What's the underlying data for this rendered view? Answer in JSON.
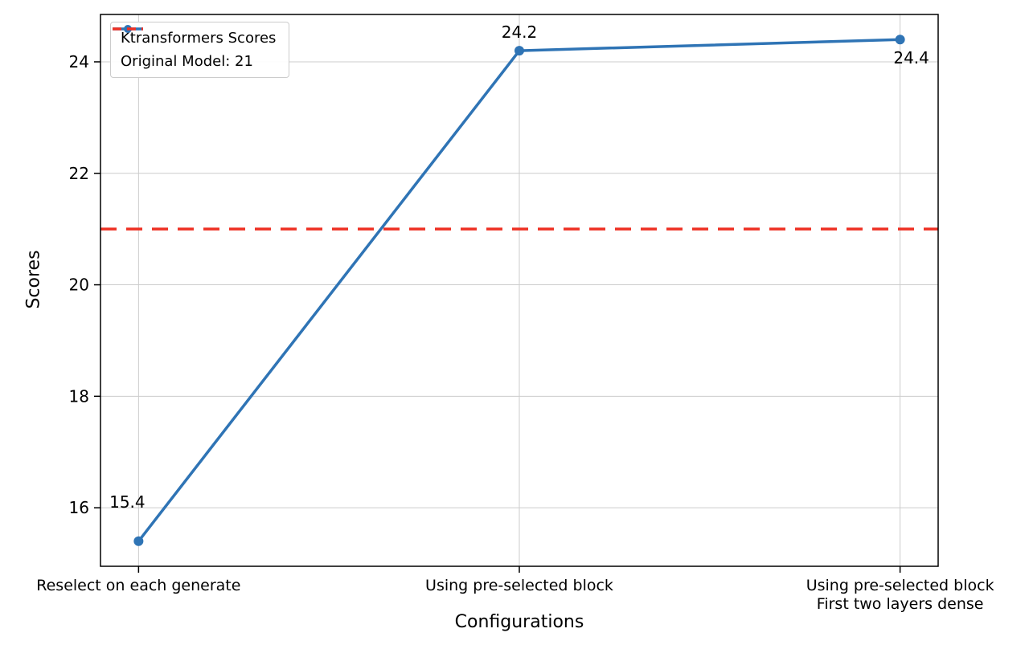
{
  "chart_data": {
    "type": "line",
    "title": "",
    "xlabel": "Configurations",
    "ylabel": "Scores",
    "categories": [
      "Reselect on each generate",
      "Using pre-selected block",
      "Using pre-selected block\nFirst two layers dense"
    ],
    "series": [
      {
        "name": "Ktransformers Scores",
        "values": [
          15.4,
          24.2,
          24.4
        ],
        "color": "#2f74b5",
        "style": "solid",
        "marker": "circle"
      }
    ],
    "reference_line": {
      "label": "Original Model: 21",
      "value": 21,
      "color": "#ee3124",
      "style": "dashed"
    },
    "point_labels": [
      "15.4",
      "24.2",
      "24.4"
    ],
    "yticks": [
      16,
      18,
      20,
      22,
      24
    ],
    "ylim": [
      14.95,
      24.85
    ],
    "xlim": [
      -0.1,
      2.1
    ],
    "grid": true,
    "grid_color": "#cccccc",
    "axis_color": "#000000",
    "legend_position": "upper-left"
  }
}
